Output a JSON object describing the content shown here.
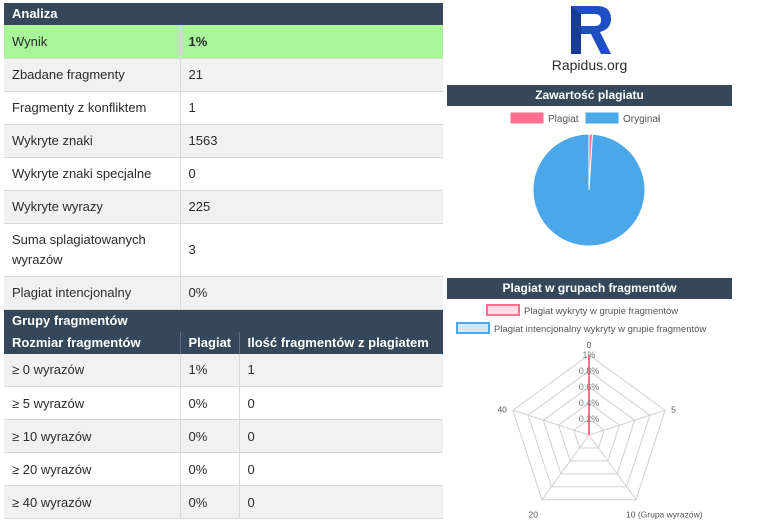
{
  "analysis": {
    "title": "Analiza",
    "rows": [
      {
        "label": "Wynik",
        "value": "1%"
      },
      {
        "label": "Zbadane fragmenty",
        "value": "21"
      },
      {
        "label": "Fragmenty z konfliktem",
        "value": "1"
      },
      {
        "label": "Wykryte znaki",
        "value": "1563"
      },
      {
        "label": "Wykryte znaki specjalne",
        "value": "0"
      },
      {
        "label": "Wykryte wyrazy",
        "value": "225"
      },
      {
        "label": "Suma splagiatowanych wyrazów",
        "value": "3"
      },
      {
        "label": "Plagiat intencjonalny",
        "value": "0%"
      }
    ]
  },
  "groups": {
    "title": "Grupy fragmentów",
    "columns": [
      "Rozmiar fragmentów",
      "Plagiat",
      "Ilość fragmentów z plagiatem"
    ],
    "rows": [
      {
        "size": "≥ 0 wyrazów",
        "plagiat": "1%",
        "count": "1"
      },
      {
        "size": "≥ 5 wyrazów",
        "plagiat": "0%",
        "count": "0"
      },
      {
        "size": "≥ 10 wyrazów",
        "plagiat": "0%",
        "count": "0"
      },
      {
        "size": "≥ 20 wyrazów",
        "plagiat": "0%",
        "count": "0"
      },
      {
        "size": "≥ 40 wyrazów",
        "plagiat": "0%",
        "count": "0"
      }
    ]
  },
  "brand": {
    "name": "Rapidus.org",
    "logo_icon": "rapidus-r-logo",
    "logo_color": "#1e4fc2"
  },
  "colors": {
    "header": "#34475b",
    "highlight": "#a8f59a",
    "plagiat": "#ff6f8f",
    "oryginal": "#4aa8ea"
  },
  "chart_data": [
    {
      "type": "pie",
      "title": "Zawartość plagiatu",
      "categories": [
        "Plagiat",
        "Oryginał"
      ],
      "values": [
        1,
        99
      ],
      "colors": [
        "#ff6f8f",
        "#4aa8ea"
      ],
      "legend": "top"
    },
    {
      "type": "radar",
      "title": "Plagiat w grupach fragmentów",
      "categories": [
        "0",
        "5",
        "10 (Grupa wyrazów)",
        "20",
        "40"
      ],
      "radial_ticks": [
        "0.2%",
        "0.4%",
        "0.6%",
        "0.8%",
        "1%"
      ],
      "rmax": 1,
      "series": [
        {
          "name": "Plagiat wykryty w grupie fragmentów",
          "values": [
            1,
            0,
            0,
            0,
            0
          ],
          "color": "#ff6f8f"
        },
        {
          "name": "Plagiat intencjonalny wykryty w grupie fragmentów",
          "values": [
            0,
            0,
            0,
            0,
            0
          ],
          "color": "#4aa8ea"
        }
      ],
      "legend": "top"
    }
  ]
}
